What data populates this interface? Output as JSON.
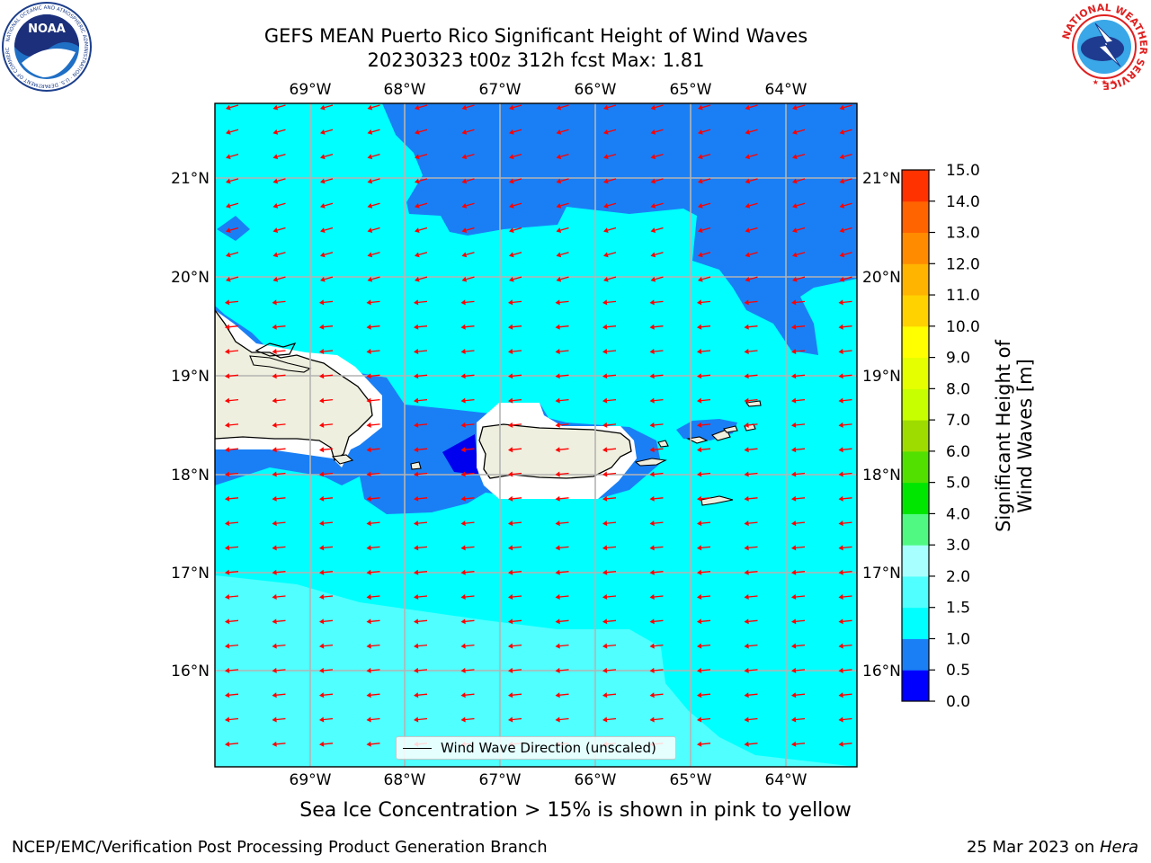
{
  "header": {
    "title_line1": "GEFS MEAN Puerto Rico Significant Height of Wind Waves",
    "title_line2": "20230323 t00z 312h fcst   Max: 1.81"
  },
  "map": {
    "lon_labels": [
      "69°W",
      "68°W",
      "67°W",
      "66°W",
      "65°W",
      "64°W"
    ],
    "lat_labels": [
      "21°N",
      "20°N",
      "19°N",
      "18°N",
      "17°N",
      "16°N"
    ],
    "region": "Puerto Rico",
    "wind_wave_direction": "toward west-southwest",
    "legend_label": "Wind Wave Direction (unscaled)",
    "colors": {
      "land": "#efefdf",
      "level_0_5_1_0": "#1a7ff5",
      "level_1_0_1_5": "#00ffff",
      "level_1_5_2_0": "#50ffff",
      "level_0_0_0_5": "#0000ee",
      "arrow": "#ff0000"
    }
  },
  "colorbar": {
    "label": "Significant Height of Wind Waves [m]",
    "ticks": [
      "0.0",
      "0.5",
      "1.0",
      "1.5",
      "2.0",
      "3.0",
      "4.0",
      "5.0",
      "6.0",
      "7.0",
      "8.0",
      "9.0",
      "10.0",
      "11.0",
      "12.0",
      "13.0",
      "14.0",
      "15.0"
    ],
    "colors": [
      "#0000ff",
      "#1a7ff5",
      "#00ffff",
      "#50ffff",
      "#a8ffff",
      "#50fa82",
      "#00e600",
      "#52e000",
      "#9edc00",
      "#c8ff00",
      "#e6ff00",
      "#ffff00",
      "#ffd200",
      "#ffb400",
      "#ff8c00",
      "#ff6400",
      "#ff3200",
      "#ff0000"
    ]
  },
  "caption": "Sea Ice Concentration > 15% is shown in pink to yellow",
  "footer": {
    "left": "NCEP/EMC/Verification Post Processing Product Generation Branch",
    "right_date": "25 Mar 2023 on ",
    "right_machine": "Hera"
  },
  "logos": {
    "noaa_text": "NOAA",
    "noaa_ring": "NATIONAL OCEANIC AND ATMOSPHERIC ADMINISTRATION · U.S. DEPARTMENT OF COMMERCE",
    "nws_ring": "NATIONAL WEATHER SERVICE"
  }
}
